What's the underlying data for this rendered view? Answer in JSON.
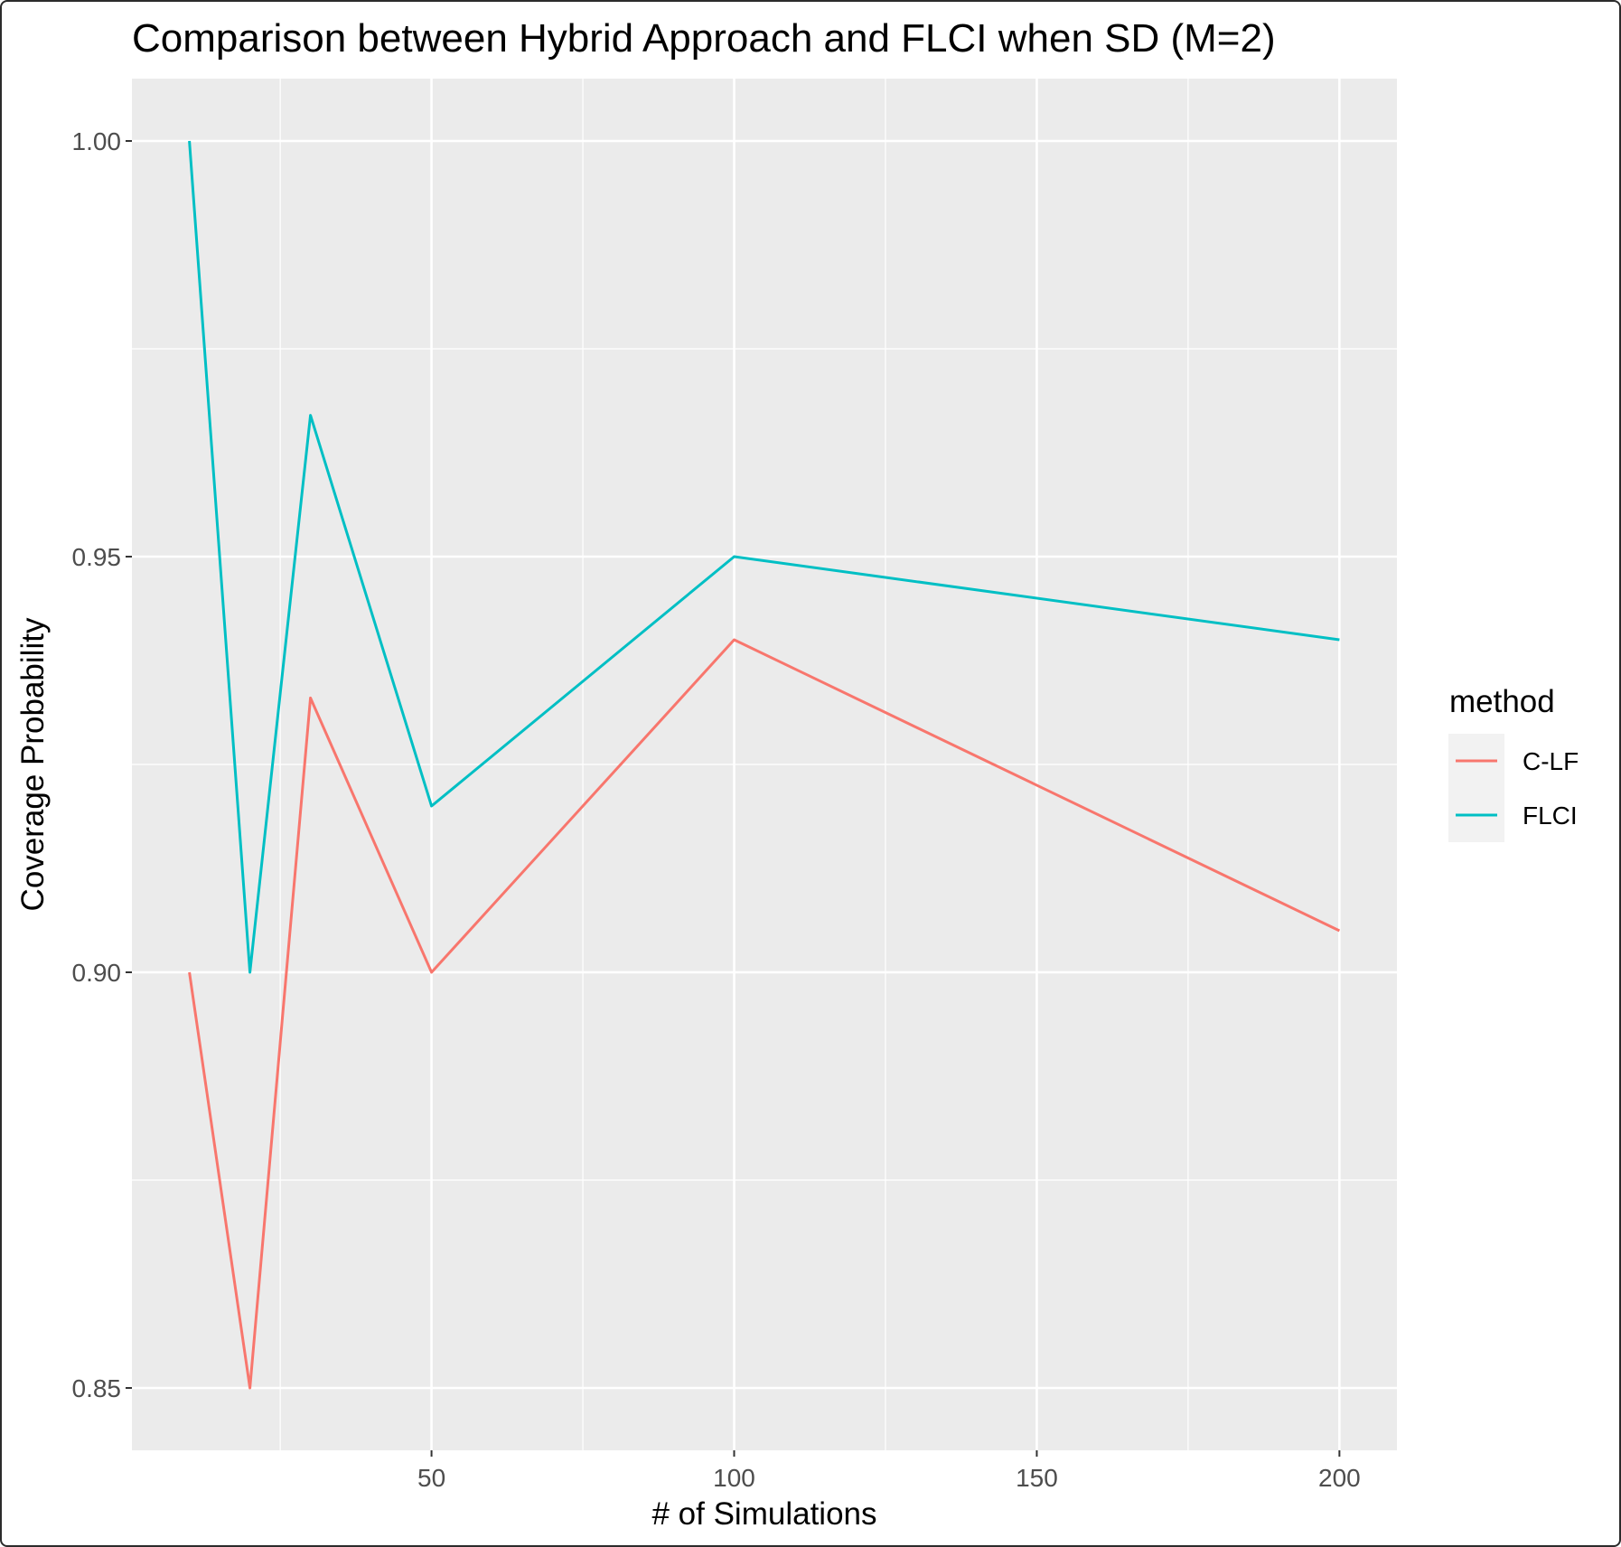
{
  "chart_data": {
    "type": "line",
    "title": "Comparison between Hybrid Approach and FLCI when SD (M=2)",
    "xlabel": "# of Simulations",
    "ylabel": "Coverage Probability",
    "xlim": [
      0.5,
      209.5
    ],
    "ylim": [
      0.8425,
      1.0075
    ],
    "x_ticks": [
      50,
      100,
      150,
      200
    ],
    "x_tick_labels": [
      "50",
      "100",
      "150",
      "200"
    ],
    "y_ticks": [
      0.85,
      0.9,
      0.95,
      1.0
    ],
    "y_tick_labels": [
      "0.85",
      "0.90",
      "0.95",
      "1.00"
    ],
    "grid": true,
    "legend_title": "method",
    "legend_position": "right",
    "series": [
      {
        "name": "C-LF",
        "color": "#F8766D",
        "x": [
          10,
          20,
          30,
          50,
          100,
          200
        ],
        "y": [
          0.9,
          0.85,
          0.933,
          0.9,
          0.94,
          0.905
        ]
      },
      {
        "name": "FLCI",
        "color": "#00BFC4",
        "x": [
          10,
          20,
          30,
          50,
          100,
          200
        ],
        "y": [
          1.0,
          0.9,
          0.967,
          0.92,
          0.95,
          0.94
        ]
      }
    ]
  }
}
